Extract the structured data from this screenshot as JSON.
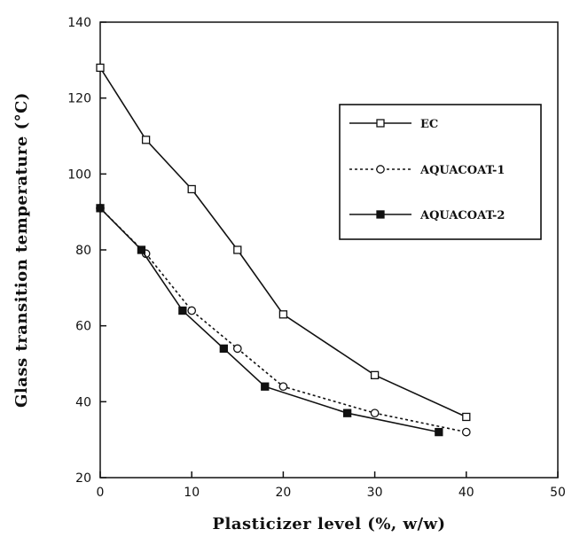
{
  "chart_data": {
    "type": "line",
    "xlabel": "Plasticizer level (%, w/w)",
    "ylabel": "Glass transition temperature (°C)",
    "xlim": [
      0,
      50
    ],
    "ylim": [
      20,
      140
    ],
    "xticks": [
      0,
      10,
      20,
      30,
      40,
      50
    ],
    "yticks": [
      20,
      40,
      60,
      80,
      100,
      120,
      140
    ],
    "grid": false,
    "legend_position": "right",
    "series": [
      {
        "name": "EC",
        "marker": "open-square",
        "line_style": "solid",
        "x": [
          0,
          5,
          10,
          15,
          20,
          30,
          40
        ],
        "y": [
          128,
          109,
          96,
          80,
          63,
          47,
          36
        ]
      },
      {
        "name": "AQUACOAT-1",
        "marker": "open-circle",
        "line_style": "dotted",
        "x": [
          0,
          5,
          10,
          15,
          20,
          30,
          40
        ],
        "y": [
          91,
          79,
          64,
          54,
          44,
          37,
          32
        ]
      },
      {
        "name": "AQUACOAT-2",
        "marker": "filled-square",
        "line_style": "solid",
        "x": [
          0,
          4.5,
          9,
          13.5,
          18,
          27,
          37
        ],
        "y": [
          91,
          80,
          64,
          54,
          44,
          37,
          32
        ]
      }
    ]
  }
}
